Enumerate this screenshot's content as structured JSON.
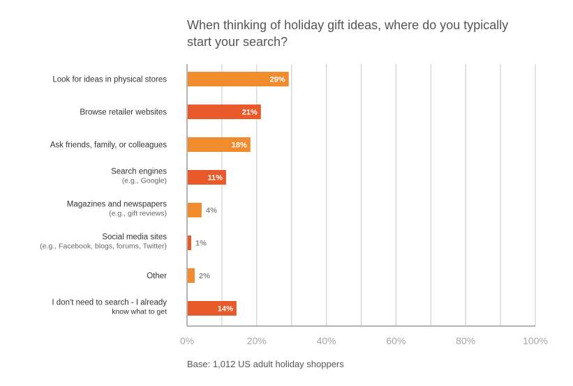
{
  "title_lines": [
    "When thinking of holiday gift ideas, where do you typically",
    "start your search?"
  ],
  "footnote": "Base: 1,012 US adult holiday shoppers",
  "colors": {
    "bar_light": "#f08c2e",
    "bar_dark": "#e85a2a",
    "gridline": "#c8c8c8",
    "axis": "#9a9a9a",
    "label_text": "#333333",
    "tick_text": "#a6a6a6"
  },
  "chart_data": {
    "type": "bar",
    "orientation": "horizontal",
    "title": "When thinking of holiday gift ideas, where do you typically start your search?",
    "categories": [
      {
        "label": "Look for ideas in physical stores",
        "sublabel": ""
      },
      {
        "label": "Browse retailer websites",
        "sublabel": ""
      },
      {
        "label": "Ask friends, family, or colleagues",
        "sublabel": ""
      },
      {
        "label": "Search engines",
        "sublabel": "(e.g., Google)"
      },
      {
        "label": "Magazines and newspapers",
        "sublabel": "(e.g., gift reviews)"
      },
      {
        "label": "Social media sites",
        "sublabel": "(e.g., Facebook, blogs, forums, Twitter)"
      },
      {
        "label": "Other",
        "sublabel": ""
      },
      {
        "label": "I don't need to search - I already",
        "sublabel": "know what to get"
      }
    ],
    "values": [
      29,
      21,
      18,
      11,
      4,
      1,
      2,
      14
    ],
    "value_labels": [
      "29%",
      "21%",
      "18%",
      "11%",
      "4%",
      "1%",
      "2%",
      "14%"
    ],
    "bar_colors": [
      "#f08c2e",
      "#e85a2a",
      "#f08c2e",
      "#e85a2a",
      "#f08c2e",
      "#e85a2a",
      "#f08c2e",
      "#e85a2a"
    ],
    "xlim": [
      0,
      100
    ],
    "xticks": [
      0,
      20,
      40,
      60,
      80,
      100
    ],
    "xtick_labels": [
      "0%",
      "20%",
      "40%",
      "60%",
      "80%",
      "100%"
    ],
    "grid": true,
    "legend": "none"
  }
}
